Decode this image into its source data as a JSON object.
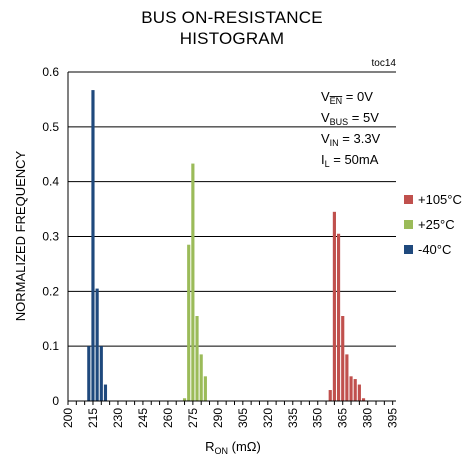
{
  "chart_data": {
    "type": "bar",
    "title_lines": [
      "BUS ON-RESISTANCE",
      "HISTOGRAM"
    ],
    "figure_code": "toc14",
    "xlabel": {
      "main": "R",
      "sub": "ON",
      "unit": " (mΩ)"
    },
    "ylabel": "NORMALIZED FREQUENCY",
    "xlim": [
      200,
      397
    ],
    "ylim": [
      0,
      0.6
    ],
    "x_ticks": [
      "200",
      "205",
      "210",
      "215",
      "220",
      "225",
      "230",
      "235",
      "240",
      "245",
      "250",
      "255",
      "260",
      "265",
      "270",
      "275",
      "280",
      "285",
      "290",
      "295",
      "300",
      "305",
      "310",
      "315",
      "320",
      "325",
      "330",
      "335",
      "340",
      "345",
      "350",
      "355",
      "360",
      "365",
      "370",
      "375",
      "380",
      "385",
      "390",
      "395"
    ],
    "y_ticks": [
      "0",
      "0.1",
      "0.2",
      "0.3",
      "0.4",
      "0.5",
      "0.6"
    ],
    "grid": "horizontal",
    "bin_width": 2.5,
    "conditions": [
      {
        "name": "V",
        "sub": "EN",
        "overline": true,
        "value": " = 0V"
      },
      {
        "name": "V",
        "sub": "BUS",
        "overline": false,
        "value": " = 5V"
      },
      {
        "name": "V",
        "sub": "IN",
        "overline": false,
        "value": " = 3.3V"
      },
      {
        "name": "I",
        "sub": "L",
        "overline": false,
        "value": " = 50mA"
      }
    ],
    "legend_position": "right",
    "series": [
      {
        "name": "+105°C",
        "color": "#c0504d",
        "bins": [
          [
            357.5,
            0.02
          ],
          [
            360,
            0.345
          ],
          [
            362.5,
            0.305
          ],
          [
            365,
            0.155
          ],
          [
            367.5,
            0.085
          ],
          [
            370,
            0.045
          ],
          [
            372.5,
            0.04
          ],
          [
            375,
            0.03
          ],
          [
            377.5,
            0.005
          ]
        ]
      },
      {
        "name": "+25°C",
        "color": "#9bbb59",
        "bins": [
          [
            270,
            0.005
          ],
          [
            272.5,
            0.285
          ],
          [
            275,
            0.433
          ],
          [
            277.5,
            0.155
          ],
          [
            280,
            0.085
          ],
          [
            282.5,
            0.045
          ]
        ]
      },
      {
        "name": "-40°C",
        "color": "#1f497d",
        "bins": [
          [
            212.5,
            0.1
          ],
          [
            215,
            0.567
          ],
          [
            217.5,
            0.205
          ],
          [
            220,
            0.1
          ],
          [
            222.5,
            0.03
          ]
        ]
      }
    ]
  }
}
